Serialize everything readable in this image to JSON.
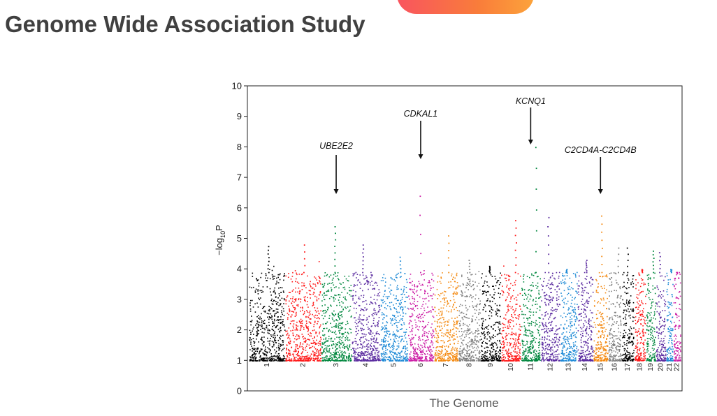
{
  "page": {
    "title": "Genome Wide Association Study"
  },
  "chart_data": {
    "type": "scatter",
    "subtype": "manhattan",
    "title": "",
    "xlabel": "The Genome",
    "ylabel": "−log10P",
    "ylabel_parts": {
      "prefix": "−log",
      "sub": "10",
      "suffix": "P"
    },
    "ylim": [
      0,
      10
    ],
    "yticks": [
      0,
      1,
      2,
      3,
      4,
      5,
      6,
      7,
      8,
      9,
      10
    ],
    "grid": false,
    "legend": "none",
    "chromosomes": [
      {
        "label": "1",
        "color": "#000000",
        "peak": 4.75
      },
      {
        "label": "2",
        "color": "#ff1a1a",
        "peak": 4.8
      },
      {
        "label": "3",
        "color": "#00873e",
        "peak": 5.4
      },
      {
        "label": "4",
        "color": "#5b2ca0",
        "peak": 4.8
      },
      {
        "label": "5",
        "color": "#1f8ad6",
        "peak": 4.4
      },
      {
        "label": "6",
        "color": "#cc1fa6",
        "peak": 6.4
      },
      {
        "label": "7",
        "color": "#f48a12",
        "peak": 5.1
      },
      {
        "label": "8",
        "color": "#808080",
        "peak": 4.3
      },
      {
        "label": "9",
        "color": "#000000",
        "peak": 4.1
      },
      {
        "label": "10",
        "color": "#ff1a1a",
        "peak": 5.6
      },
      {
        "label": "11",
        "color": "#00873e",
        "peak": 8.0
      },
      {
        "label": "12",
        "color": "#5b2ca0",
        "peak": 5.7
      },
      {
        "label": "13",
        "color": "#1f8ad6",
        "peak": 4.0
      },
      {
        "label": "14",
        "color": "#5b2ca0",
        "peak": 4.3
      },
      {
        "label": "15",
        "color": "#f48a12",
        "peak": 5.75
      },
      {
        "label": "16",
        "color": "#808080",
        "peak": 4.7
      },
      {
        "label": "17",
        "color": "#000000",
        "peak": 4.7
      },
      {
        "label": "18",
        "color": "#ff1a1a",
        "peak": 4.0
      },
      {
        "label": "19",
        "color": "#00873e",
        "peak": 4.6
      },
      {
        "label": "20",
        "color": "#5b2ca0",
        "peak": 4.55
      },
      {
        "label": "21",
        "color": "#1f8ad6",
        "peak": 4.0
      },
      {
        "label": "22",
        "color": "#cc1fa6",
        "peak": 3.9
      }
    ],
    "annotations": [
      {
        "label": "UBE2E2",
        "chromosome": "3",
        "y": 5.4
      },
      {
        "label": "CDKAL1",
        "chromosome": "6",
        "y": 6.4
      },
      {
        "label": "KCNQ1",
        "chromosome": "11",
        "y": 8.0
      },
      {
        "label": "C2CD4A-C2CD4B",
        "chromosome": "15",
        "y": 5.75
      }
    ]
  }
}
